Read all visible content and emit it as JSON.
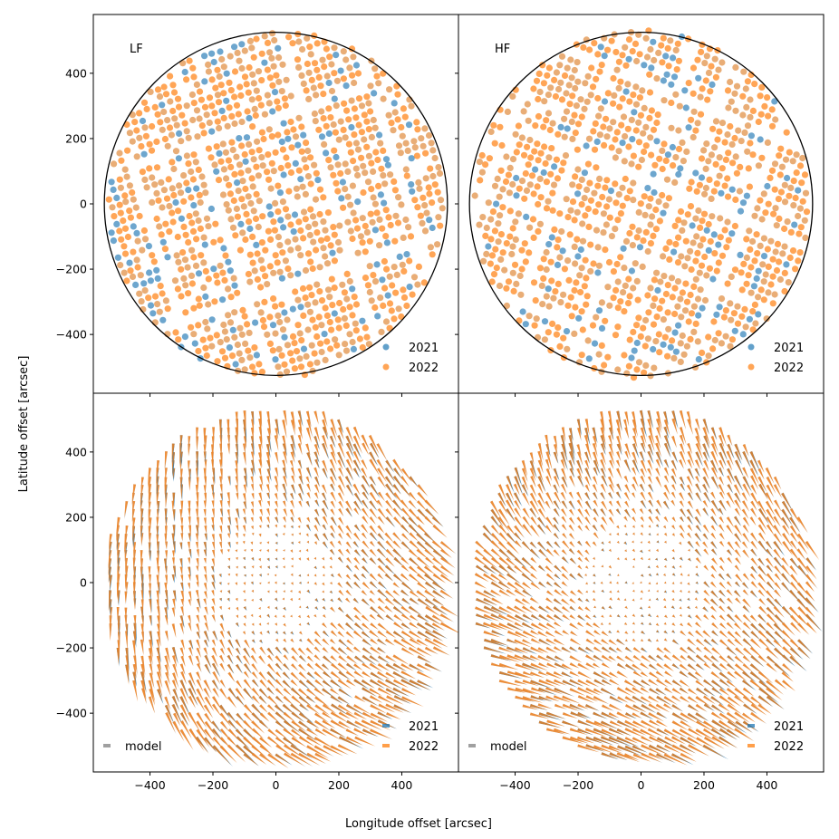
{
  "figure": {
    "xlabel": "Longitude offset [arcsec]",
    "ylabel": "Latitude offset [arcsec]"
  },
  "colors": {
    "series_2021": "#1f77b4",
    "series_2022": "#ff7f0e",
    "model": "#a0a0a0",
    "circle": "#000000"
  },
  "chart_data": [
    {
      "type": "scatter",
      "panel": "top-left",
      "label": "LF",
      "xlim": [
        -580,
        580
      ],
      "ylim": [
        -580,
        580
      ],
      "xticks": [
        -400,
        -200,
        0,
        200,
        400
      ],
      "yticks": [
        -400,
        -200,
        0,
        200,
        400
      ],
      "ytick_labels": [
        "−400",
        "−200",
        "0",
        "200",
        "400"
      ],
      "show_xticklabels": false,
      "show_yticklabels": true,
      "disk_radius": 545,
      "grid_spacing": 25,
      "scan_angle_deg": 18,
      "series": [
        {
          "name": "2021",
          "color": "#1f77b4"
        },
        {
          "name": "2022",
          "color": "#ff7f0e"
        }
      ],
      "legend": {
        "position": "lower-right",
        "entries": [
          "2021",
          "2022"
        ]
      }
    },
    {
      "type": "scatter",
      "panel": "top-right",
      "label": "HF",
      "xlim": [
        -580,
        580
      ],
      "ylim": [
        -580,
        580
      ],
      "xticks": [
        -400,
        -200,
        0,
        200,
        400
      ],
      "yticks": [
        -400,
        -200,
        0,
        200,
        400
      ],
      "show_xticklabels": false,
      "show_yticklabels": false,
      "disk_radius": 545,
      "grid_spacing": 25,
      "scan_angle_deg": -22,
      "series": [
        {
          "name": "2021",
          "color": "#1f77b4"
        },
        {
          "name": "2022",
          "color": "#ff7f0e"
        }
      ],
      "legend": {
        "position": "lower-right",
        "entries": [
          "2021",
          "2022"
        ]
      }
    },
    {
      "type": "quiver",
      "panel": "bottom-left",
      "xlim": [
        -580,
        580
      ],
      "ylim": [
        -580,
        580
      ],
      "xticks": [
        -400,
        -200,
        0,
        200,
        400
      ],
      "yticks": [
        -400,
        -200,
        0,
        200,
        400
      ],
      "xtick_labels": [
        "−400",
        "−200",
        "0",
        "200",
        "400"
      ],
      "ytick_labels": [
        "−400",
        "−200",
        "0",
        "200",
        "400"
      ],
      "show_xticklabels": true,
      "show_yticklabels": true,
      "disk_radius": 545,
      "grid_spacing": 25,
      "series": [
        {
          "name": "model",
          "color": "#a0a0a0"
        },
        {
          "name": "2021",
          "color": "#1f77b4"
        },
        {
          "name": "2022",
          "color": "#ff7f0e"
        }
      ],
      "legend_left": {
        "position": "lower-left",
        "entries": [
          "model"
        ]
      },
      "legend_right": {
        "position": "lower-right",
        "entries": [
          "2021",
          "2022"
        ]
      }
    },
    {
      "type": "quiver",
      "panel": "bottom-right",
      "xlim": [
        -580,
        580
      ],
      "ylim": [
        -580,
        580
      ],
      "xticks": [
        -400,
        -200,
        0,
        200,
        400
      ],
      "yticks": [
        -400,
        -200,
        0,
        200,
        400
      ],
      "xtick_labels": [
        "−400",
        "−200",
        "0",
        "200",
        "400"
      ],
      "show_xticklabels": true,
      "show_yticklabels": false,
      "disk_radius": 545,
      "grid_spacing": 25,
      "series": [
        {
          "name": "model",
          "color": "#a0a0a0"
        },
        {
          "name": "2021",
          "color": "#1f77b4"
        },
        {
          "name": "2022",
          "color": "#ff7f0e"
        }
      ],
      "legend_left": {
        "position": "lower-left",
        "entries": [
          "model"
        ]
      },
      "legend_right": {
        "position": "lower-right",
        "entries": [
          "2021",
          "2022"
        ]
      }
    }
  ]
}
